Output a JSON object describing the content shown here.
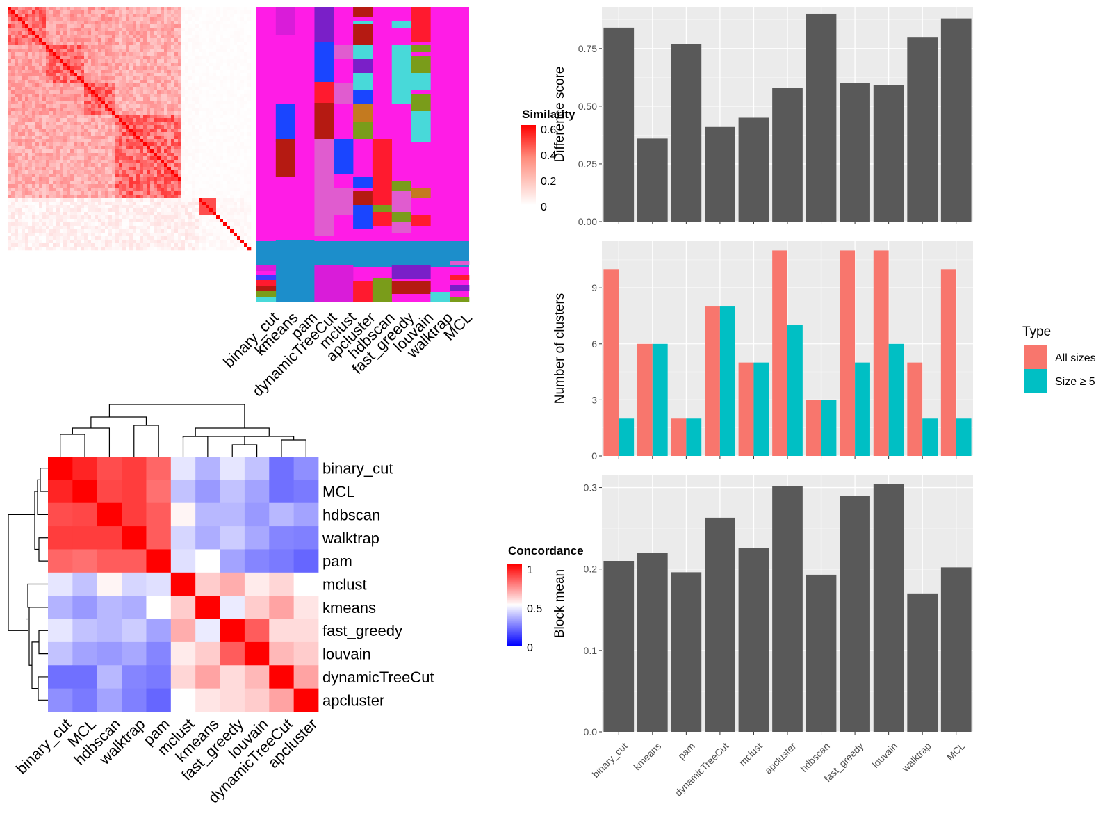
{
  "colors": {
    "panel_bg": "#ebebeb",
    "grid": "#ffffff",
    "bar": "#595959",
    "all_sizes": "#f8766d",
    "size_ge_5": "#00bfc4",
    "sim_high": "#ff0000",
    "conc_high": "#ff0000",
    "conc_mid": "#ffffff",
    "conc_low": "#0000ff"
  },
  "methods": [
    "binary_cut",
    "kmeans",
    "pam",
    "dynamicTreeCut",
    "mclust",
    "apcluster",
    "hdbscan",
    "fast_greedy",
    "louvain",
    "walktrap",
    "MCL"
  ],
  "similarity_legend": {
    "title": "Similarity",
    "ticks": [
      "0.6",
      "0.4",
      "0.2",
      "0"
    ]
  },
  "concordance_legend": {
    "title": "Concordance",
    "ticks": [
      "1",
      "0.5",
      "0"
    ]
  },
  "concordance_order": [
    "binary_cut",
    "MCL",
    "hdbscan",
    "walktrap",
    "pam",
    "mclust",
    "kmeans",
    "fast_greedy",
    "louvain",
    "dynamicTreeCut",
    "apcluster"
  ],
  "chart_data": [
    {
      "type": "heatmap",
      "title": "",
      "legend_title": "Similarity",
      "range": [
        0,
        0.6
      ],
      "row_blocks": [
        "similarity matrix of terms, block diagonal"
      ]
    },
    {
      "type": "heatmap",
      "title": "",
      "legend_title": "Concordance",
      "range": [
        0,
        1
      ],
      "rows": [
        "binary_cut",
        "MCL",
        "hdbscan",
        "walktrap",
        "pam",
        "mclust",
        "kmeans",
        "fast_greedy",
        "louvain",
        "dynamicTreeCut",
        "apcluster"
      ],
      "cols": [
        "binary_cut",
        "MCL",
        "hdbscan",
        "walktrap",
        "pam",
        "mclust",
        "kmeans",
        "fast_greedy",
        "louvain",
        "dynamicTreeCut",
        "apcluster"
      ],
      "values": [
        [
          1.0,
          0.93,
          0.85,
          0.88,
          0.8,
          0.45,
          0.35,
          0.45,
          0.38,
          0.22,
          0.28
        ],
        [
          0.93,
          1.0,
          0.86,
          0.88,
          0.78,
          0.38,
          0.3,
          0.38,
          0.32,
          0.22,
          0.24
        ],
        [
          0.85,
          0.86,
          1.0,
          0.88,
          0.82,
          0.52,
          0.36,
          0.36,
          0.3,
          0.36,
          0.32
        ],
        [
          0.88,
          0.88,
          0.88,
          1.0,
          0.82,
          0.42,
          0.34,
          0.4,
          0.33,
          0.26,
          0.25
        ],
        [
          0.8,
          0.78,
          0.82,
          0.82,
          1.0,
          0.44,
          0.5,
          0.32,
          0.26,
          0.24,
          0.2
        ],
        [
          0.45,
          0.38,
          0.52,
          0.42,
          0.44,
          1.0,
          0.6,
          0.66,
          0.54,
          0.58,
          0.5
        ],
        [
          0.35,
          0.3,
          0.36,
          0.34,
          0.5,
          0.6,
          1.0,
          0.46,
          0.6,
          0.68,
          0.55
        ],
        [
          0.45,
          0.38,
          0.36,
          0.4,
          0.32,
          0.66,
          0.46,
          1.0,
          0.82,
          0.57,
          0.57
        ],
        [
          0.38,
          0.32,
          0.3,
          0.33,
          0.26,
          0.54,
          0.6,
          0.82,
          1.0,
          0.64,
          0.6
        ],
        [
          0.22,
          0.22,
          0.36,
          0.26,
          0.24,
          0.58,
          0.68,
          0.57,
          0.64,
          1.0,
          0.68
        ],
        [
          0.28,
          0.24,
          0.32,
          0.25,
          0.2,
          0.5,
          0.55,
          0.57,
          0.6,
          0.68,
          1.0
        ]
      ]
    },
    {
      "type": "bar",
      "ylabel": "Difference score",
      "xlabel": "",
      "categories": [
        "binary_cut",
        "kmeans",
        "pam",
        "dynamicTreeCut",
        "mclust",
        "apcluster",
        "hdbscan",
        "fast_greedy",
        "louvain",
        "walktrap",
        "MCL"
      ],
      "values": [
        0.84,
        0.36,
        0.77,
        0.41,
        0.45,
        0.58,
        0.9,
        0.6,
        0.59,
        0.8,
        0.88
      ],
      "ylim": [
        0,
        0.93
      ],
      "yticks": [
        "0.00",
        "0.25",
        "0.50",
        "0.75"
      ]
    },
    {
      "type": "bar",
      "ylabel": "Number of clusters",
      "xlabel": "",
      "legend_title": "Type",
      "legend_position": "right",
      "categories": [
        "binary_cut",
        "kmeans",
        "pam",
        "dynamicTreeCut",
        "mclust",
        "apcluster",
        "hdbscan",
        "fast_greedy",
        "louvain",
        "walktrap",
        "MCL"
      ],
      "series": [
        {
          "name": "All sizes",
          "values": [
            10,
            6,
            2,
            8,
            5,
            11,
            3,
            11,
            11,
            5,
            10
          ]
        },
        {
          "name": "Size ≥ 5",
          "values": [
            2,
            6,
            2,
            8,
            5,
            7,
            3,
            5,
            6,
            2,
            2
          ]
        }
      ],
      "ylim": [
        0,
        11.5
      ],
      "yticks": [
        "0",
        "3",
        "6",
        "9"
      ]
    },
    {
      "type": "bar",
      "ylabel": "Block mean",
      "xlabel": "",
      "categories": [
        "binary_cut",
        "kmeans",
        "pam",
        "dynamicTreeCut",
        "mclust",
        "apcluster",
        "hdbscan",
        "fast_greedy",
        "louvain",
        "walktrap",
        "MCL"
      ],
      "values": [
        0.21,
        0.22,
        0.196,
        0.263,
        0.226,
        0.302,
        0.193,
        0.29,
        0.304,
        0.17,
        0.202
      ],
      "ylim": [
        0,
        0.315
      ],
      "yticks": [
        "0.0",
        "0.1",
        "0.2",
        "0.3"
      ]
    }
  ]
}
